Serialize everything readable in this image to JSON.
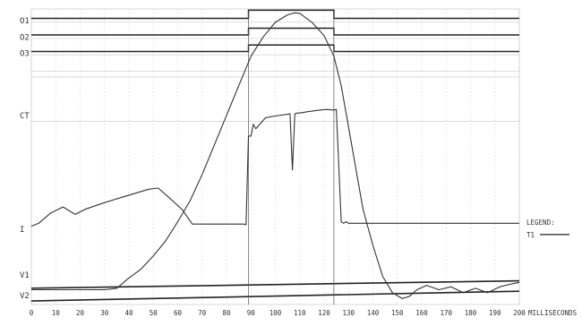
{
  "chart_data": {
    "type": "line",
    "title": "",
    "xlabel": "MILLISECONDS",
    "ylabel": "",
    "xlim": [
      0,
      200
    ],
    "x_ticks": [
      0,
      10,
      20,
      30,
      40,
      50,
      60,
      70,
      80,
      90,
      100,
      110,
      120,
      130,
      140,
      150,
      160,
      170,
      180,
      190,
      200
    ],
    "grid": true,
    "legend": {
      "title": "LEGEND:",
      "entries": [
        "T1"
      ],
      "placement": "right"
    },
    "channels": [
      {
        "name": "O1",
        "kind": "digital",
        "base": 0.968,
        "high": 0.996,
        "high_intervals": [
          [
            89,
            124
          ]
        ]
      },
      {
        "name": "O2",
        "kind": "digital",
        "base": 0.912,
        "high": 0.935,
        "high_intervals": [
          [
            89,
            124
          ]
        ]
      },
      {
        "name": "O3",
        "kind": "digital",
        "base": 0.856,
        "high": 0.878,
        "high_intervals": [
          [
            89,
            124
          ]
        ]
      },
      {
        "name": "CT",
        "kind": "analog"
      },
      {
        "name": "I",
        "kind": "analog"
      },
      {
        "name": "V1",
        "kind": "analog"
      },
      {
        "name": "V2",
        "kind": "analog"
      }
    ],
    "series": [
      {
        "name": "T1",
        "x": [
          0,
          3,
          8,
          13,
          18,
          22,
          30,
          36,
          42,
          48,
          52,
          56,
          62,
          66,
          87,
          88,
          89,
          90,
          91,
          92,
          96,
          100,
          106,
          107,
          108,
          109,
          110,
          113,
          118,
          121,
          124,
          125,
          127,
          128,
          129,
          130,
          135,
          140,
          150,
          200
        ],
        "y": [
          0.265,
          0.275,
          0.31,
          0.33,
          0.305,
          0.322,
          0.345,
          0.36,
          0.375,
          0.39,
          0.394,
          0.365,
          0.32,
          0.272,
          0.272,
          0.27,
          0.57,
          0.57,
          0.61,
          0.595,
          0.632,
          0.638,
          0.645,
          0.455,
          0.645,
          0.648,
          0.648,
          0.652,
          0.658,
          0.66,
          0.658,
          0.66,
          0.28,
          0.275,
          0.28,
          0.275,
          0.275,
          0.275,
          0.275,
          0.275
        ]
      },
      {
        "name": "CT",
        "x": [
          0,
          30,
          35,
          40,
          45,
          50,
          55,
          60,
          65,
          70,
          75,
          80,
          85,
          90,
          95,
          100,
          105,
          108,
          110,
          115,
          120,
          124,
          127,
          130,
          133,
          136,
          140,
          144,
          148,
          152,
          155,
          158,
          162,
          167,
          172,
          177,
          182,
          187,
          192,
          197,
          200
        ],
        "y": [
          0.05,
          0.05,
          0.055,
          0.09,
          0.12,
          0.165,
          0.215,
          0.28,
          0.35,
          0.44,
          0.54,
          0.64,
          0.74,
          0.84,
          0.905,
          0.955,
          0.98,
          0.987,
          0.985,
          0.955,
          0.91,
          0.84,
          0.74,
          0.6,
          0.46,
          0.32,
          0.2,
          0.095,
          0.04,
          0.02,
          0.028,
          0.05,
          0.065,
          0.05,
          0.06,
          0.04,
          0.055,
          0.04,
          0.06,
          0.07,
          0.075
        ]
      }
    ],
    "reference_lines": [
      {
        "name": "V1",
        "from": [
          0,
          0.055
        ],
        "to": [
          200,
          0.08
        ]
      },
      {
        "name": "V2",
        "from": [
          0,
          0.012
        ],
        "to": [
          200,
          0.045
        ]
      }
    ],
    "cursors": [
      89,
      124
    ]
  }
}
